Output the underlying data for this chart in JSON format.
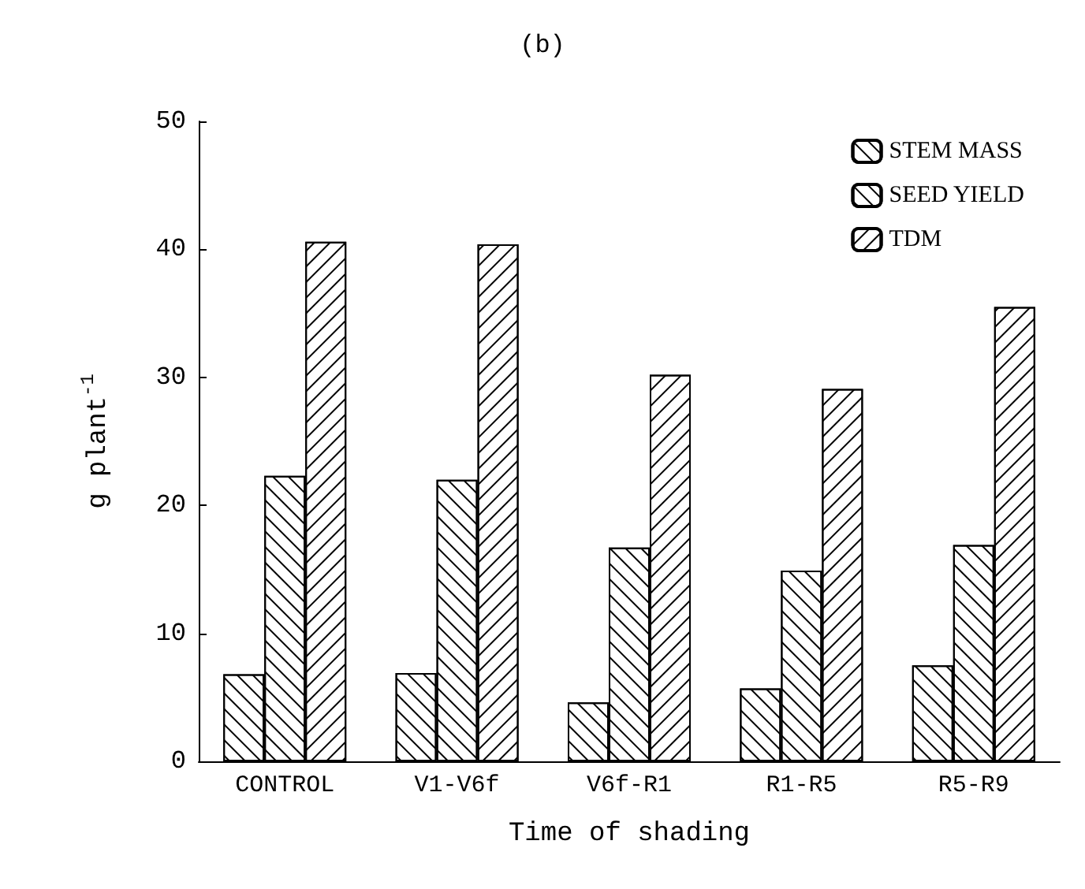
{
  "chart_data": {
    "type": "bar",
    "title": "(b)",
    "xlabel": "Time of shading",
    "ylabel": "g plant$^{-1}$",
    "categories": [
      "CONTROL",
      "V1-V6f",
      "V6f-R1",
      "R1-R5",
      "R5-R9"
    ],
    "series": [
      {
        "name": "STEM MASS",
        "color": "#ffffff",
        "values": [
          6.8,
          6.9,
          4.6,
          5.7,
          7.5
        ]
      },
      {
        "name": "SEED YIELD",
        "color": "#ffffff",
        "values": [
          22.3,
          22.0,
          16.7,
          14.9,
          16.9
        ]
      },
      {
        "name": "TDM",
        "color": "#ffffff",
        "values": [
          40.6,
          40.4,
          30.2,
          29.1,
          35.5
        ]
      }
    ],
    "ylim": [
      0,
      50
    ],
    "yticks": [
      0,
      10,
      20,
      30,
      40,
      50
    ],
    "grid": false,
    "legend": "top right"
  }
}
